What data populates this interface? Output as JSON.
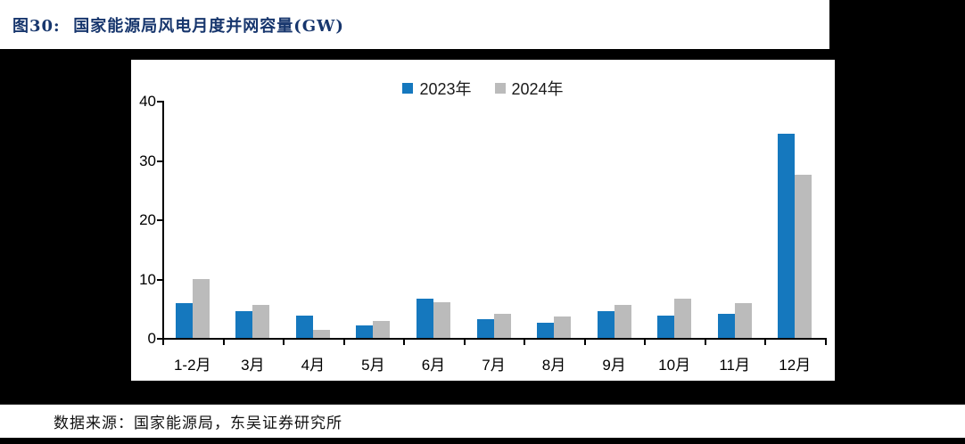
{
  "header": {
    "figure_label": "图30:",
    "title": "国家能源局风电月度并网容量(GW)"
  },
  "footer": {
    "source": "数据来源：国家能源局，东吴证券研究所"
  },
  "colors": {
    "title_navy": "#17366d",
    "series_2023_blue": "#1578be",
    "series_2024_gray": "#bbbbbb",
    "axis_black": "#000000",
    "panel_white": "#ffffff",
    "page_black": "#000000"
  },
  "chart_data": {
    "type": "bar",
    "title": "国家能源局风电月度并网容量(GW)",
    "categories": [
      "1-2月",
      "3月",
      "4月",
      "5月",
      "6月",
      "7月",
      "8月",
      "9月",
      "10月",
      "11月",
      "12月"
    ],
    "series": [
      {
        "name": "2023年",
        "color": "#1578be",
        "values": [
          5.8,
          4.5,
          3.8,
          2.1,
          6.6,
          3.2,
          2.5,
          4.5,
          3.8,
          4.0,
          34.5
        ]
      },
      {
        "name": "2024年",
        "color": "#bbbbbb",
        "values": [
          9.9,
          5.5,
          1.3,
          2.8,
          6.0,
          4.0,
          3.6,
          5.5,
          6.6,
          5.9,
          27.5
        ]
      }
    ],
    "xlabel": "",
    "ylabel": "",
    "ylim": [
      0,
      40
    ],
    "yticks": [
      0,
      10,
      20,
      30,
      40
    ],
    "legend_position": "top-center",
    "grid": false
  }
}
